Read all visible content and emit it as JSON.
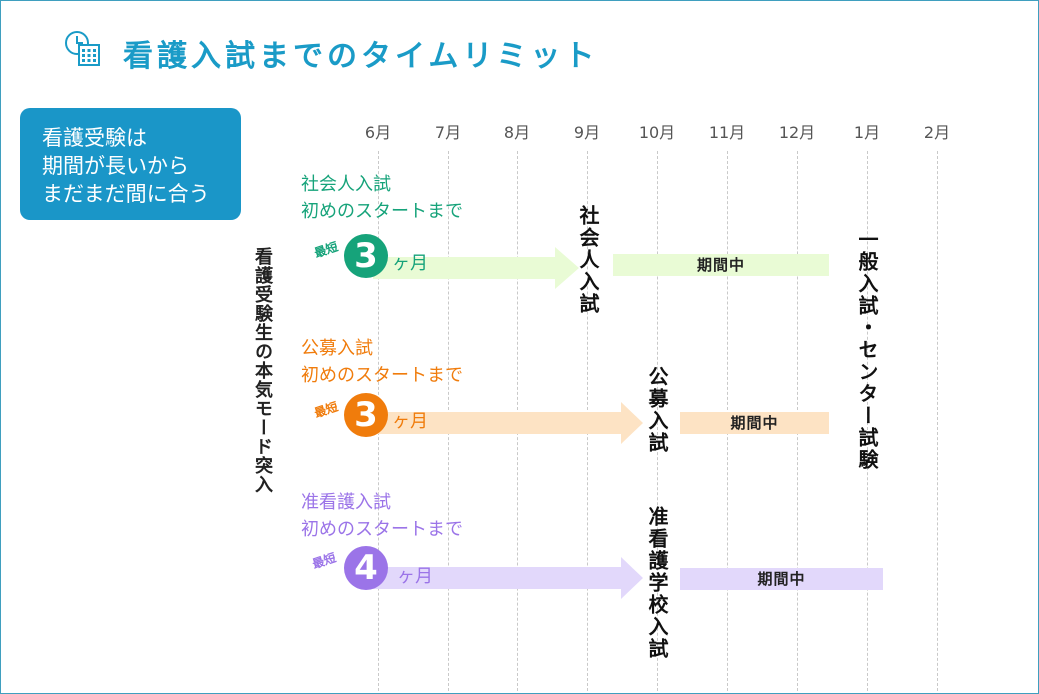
{
  "page": {
    "title": "看護入試までのタイムリミット",
    "title_icon": "calendar-clock-icon",
    "accent_color": "#1a9bc7"
  },
  "callout": {
    "lines": [
      "看護受験は",
      "期間が長いから",
      "まだまだ間に合う"
    ],
    "background": "#1a96c8"
  },
  "side_label": "看護受験生の本気モード突入",
  "months": [
    "6月",
    "7月",
    "8月",
    "9月",
    "10月",
    "11月",
    "12月",
    "1月",
    "2月"
  ],
  "tracks": [
    {
      "title_line1": "社会人入試",
      "title_line2": "初めのスタートまで",
      "saitan": "最短",
      "count": "3",
      "unit": "ヶ月",
      "period_label": "期間中",
      "exam_label": "社会人入試",
      "color": "#16a37a",
      "arrow_color": "#e9fbd5"
    },
    {
      "title_line1": "公募入試",
      "title_line2": "初めのスタートまで",
      "saitan": "最短",
      "count": "3",
      "unit": "ヶ月",
      "period_label": "期間中",
      "exam_label": "公募入試",
      "color": "#f07c0c",
      "arrow_color": "#fde3c4"
    },
    {
      "title_line1": "准看護入試",
      "title_line2": "初めのスタートまで",
      "saitan": "最短",
      "count": "4",
      "unit": "ヶ月",
      "period_label": "期間中",
      "exam_label": "准看護学校入試",
      "color": "#9b74e8",
      "arrow_color": "#e2d8fb"
    }
  ],
  "final_exam_label": "一般入試・センター試験"
}
